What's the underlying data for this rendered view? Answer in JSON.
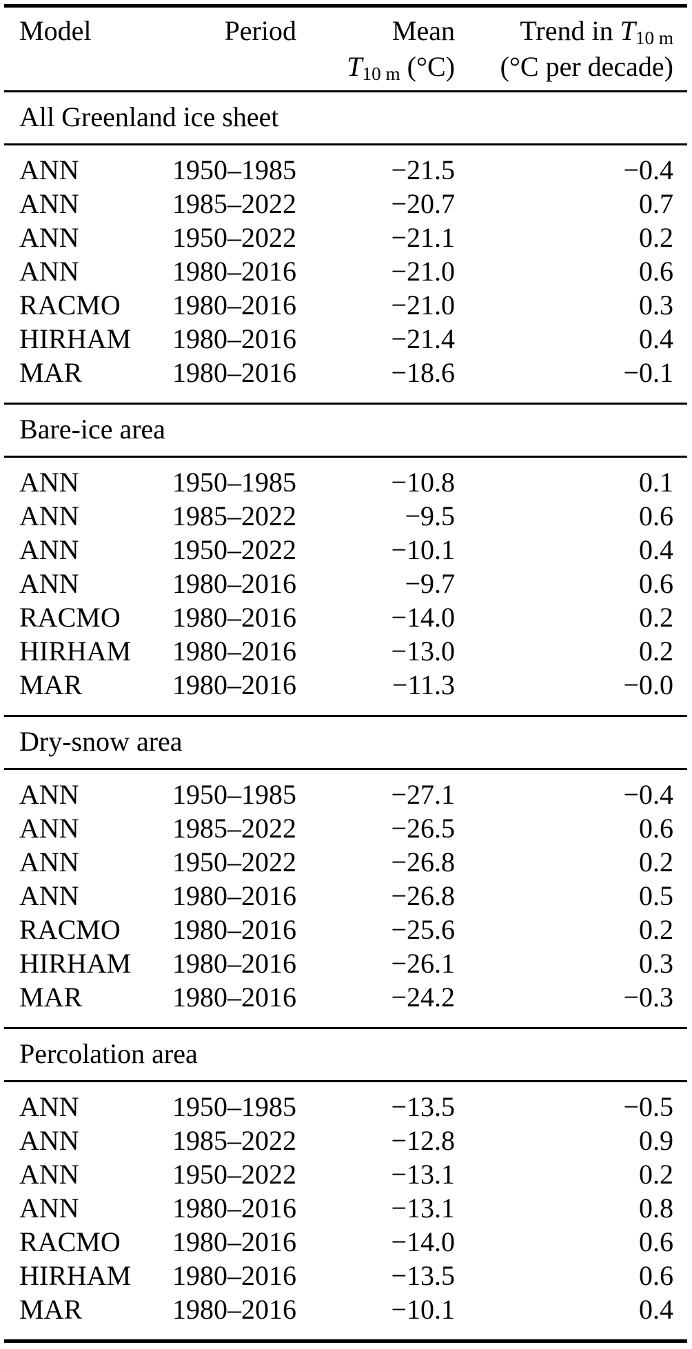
{
  "accent_colors": {
    "text": "#000000",
    "background": "#ffffff",
    "rule": "#000000"
  },
  "header": {
    "col_model": "Model",
    "col_period": "Period",
    "col_mean_line1": "Mean",
    "col_mean_symbol": "T",
    "col_mean_sub": "10 m",
    "col_mean_unit": " (°C)",
    "col_trend_prefix": "Trend in ",
    "col_trend_symbol": "T",
    "col_trend_sub": "10 m",
    "col_trend_line2": "(°C per decade)"
  },
  "columns_flat": [
    "Model",
    "Period",
    "Mean T10m (°C)",
    "Trend in T10m (°C per decade)"
  ],
  "sections": [
    {
      "title": "All Greenland ice sheet",
      "rows": [
        {
          "model": "ANN",
          "period": "1950–1985",
          "mean": "−21.5",
          "trend": "−0.4"
        },
        {
          "model": "ANN",
          "period": "1985–2022",
          "mean": "−20.7",
          "trend": "0.7"
        },
        {
          "model": "ANN",
          "period": "1950–2022",
          "mean": "−21.1",
          "trend": "0.2"
        },
        {
          "model": "ANN",
          "period": "1980–2016",
          "mean": "−21.0",
          "trend": "0.6"
        },
        {
          "model": "RACMO",
          "period": "1980–2016",
          "mean": "−21.0",
          "trend": "0.3"
        },
        {
          "model": "HIRHAM",
          "period": "1980–2016",
          "mean": "−21.4",
          "trend": "0.4"
        },
        {
          "model": "MAR",
          "period": "1980–2016",
          "mean": "−18.6",
          "trend": "−0.1"
        }
      ]
    },
    {
      "title": "Bare-ice area",
      "rows": [
        {
          "model": "ANN",
          "period": "1950–1985",
          "mean": "−10.8",
          "trend": "0.1"
        },
        {
          "model": "ANN",
          "period": "1985–2022",
          "mean": "−9.5",
          "trend": "0.6"
        },
        {
          "model": "ANN",
          "period": "1950–2022",
          "mean": "−10.1",
          "trend": "0.4"
        },
        {
          "model": "ANN",
          "period": "1980–2016",
          "mean": "−9.7",
          "trend": "0.6"
        },
        {
          "model": "RACMO",
          "period": "1980–2016",
          "mean": "−14.0",
          "trend": "0.2"
        },
        {
          "model": "HIRHAM",
          "period": "1980–2016",
          "mean": "−13.0",
          "trend": "0.2"
        },
        {
          "model": "MAR",
          "period": "1980–2016",
          "mean": "−11.3",
          "trend": "−0.0"
        }
      ]
    },
    {
      "title": "Dry-snow area",
      "rows": [
        {
          "model": "ANN",
          "period": "1950–1985",
          "mean": "−27.1",
          "trend": "−0.4"
        },
        {
          "model": "ANN",
          "period": "1985–2022",
          "mean": "−26.5",
          "trend": "0.6"
        },
        {
          "model": "ANN",
          "period": "1950–2022",
          "mean": "−26.8",
          "trend": "0.2"
        },
        {
          "model": "ANN",
          "period": "1980–2016",
          "mean": "−26.8",
          "trend": "0.5"
        },
        {
          "model": "RACMO",
          "period": "1980–2016",
          "mean": "−25.6",
          "trend": "0.2"
        },
        {
          "model": "HIRHAM",
          "period": "1980–2016",
          "mean": "−26.1",
          "trend": "0.3"
        },
        {
          "model": "MAR",
          "period": "1980–2016",
          "mean": "−24.2",
          "trend": "−0.3"
        }
      ]
    },
    {
      "title": "Percolation area",
      "rows": [
        {
          "model": "ANN",
          "period": "1950–1985",
          "mean": "−13.5",
          "trend": "−0.5"
        },
        {
          "model": "ANN",
          "period": "1985–2022",
          "mean": "−12.8",
          "trend": "0.9"
        },
        {
          "model": "ANN",
          "period": "1950–2022",
          "mean": "−13.1",
          "trend": "0.2"
        },
        {
          "model": "ANN",
          "period": "1980–2016",
          "mean": "−13.1",
          "trend": "0.8"
        },
        {
          "model": "RACMO",
          "period": "1980–2016",
          "mean": "−14.0",
          "trend": "0.6"
        },
        {
          "model": "HIRHAM",
          "period": "1980–2016",
          "mean": "−13.5",
          "trend": "0.6"
        },
        {
          "model": "MAR",
          "period": "1980–2016",
          "mean": "−10.1",
          "trend": "0.4"
        }
      ]
    }
  ]
}
